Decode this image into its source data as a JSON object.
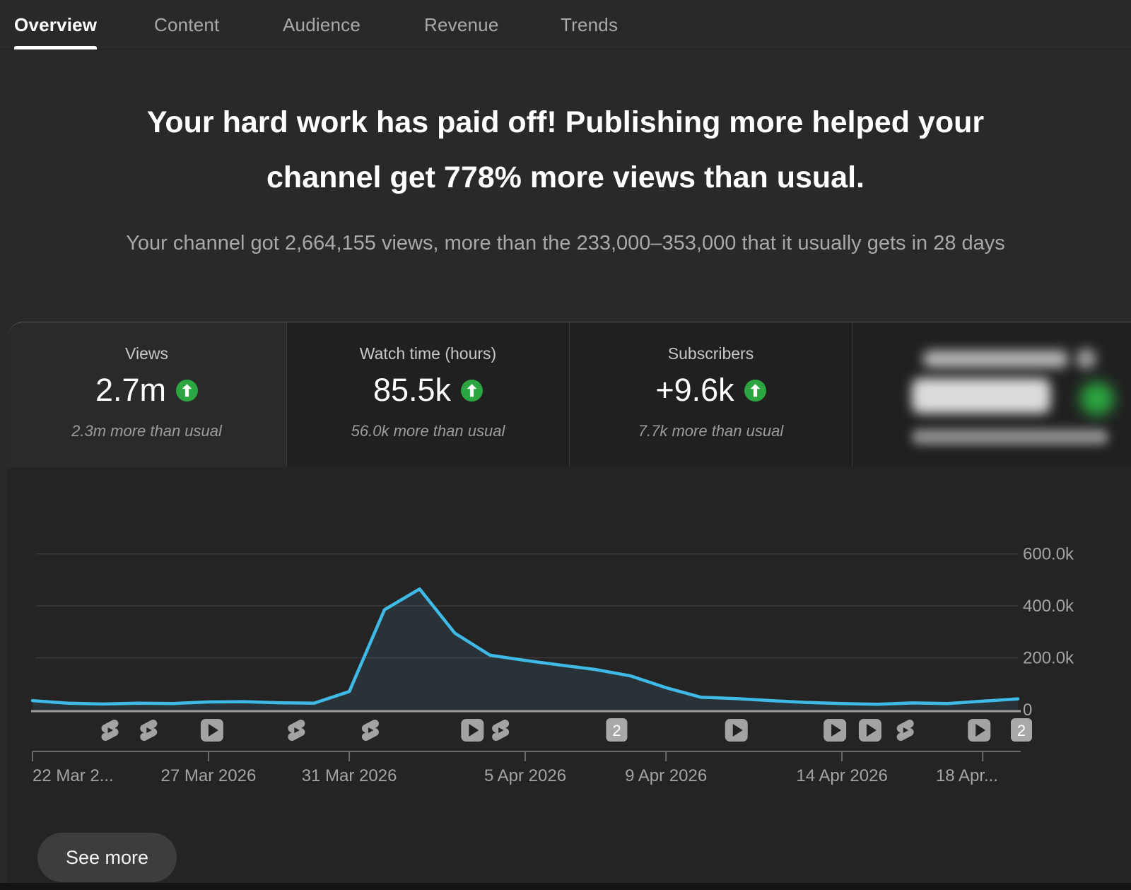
{
  "tabs": {
    "items": [
      {
        "label": "Overview",
        "active": true
      },
      {
        "label": "Content",
        "active": false
      },
      {
        "label": "Audience",
        "active": false
      },
      {
        "label": "Revenue",
        "active": false
      },
      {
        "label": "Trends",
        "active": false
      }
    ]
  },
  "headline": {
    "line1": "Your hard work has paid off! Publishing more helped your",
    "line2": "channel get 778% more views than usual."
  },
  "subheadline": "Your channel got 2,664,155 views, more than the 233,000–353,000 that it usually gets in 28 days",
  "metric_cards": [
    {
      "label": "Views",
      "value": "2.7m",
      "trend": "up",
      "note": "2.3m more than usual",
      "selected": true
    },
    {
      "label": "Watch time (hours)",
      "value": "85.5k",
      "trend": "up",
      "note": "56.0k more than usual",
      "selected": false
    },
    {
      "label": "Subscribers",
      "value": "+9.6k",
      "trend": "up",
      "note": "7.7k more than usual",
      "selected": false
    },
    {
      "redacted": true,
      "trend": "up",
      "selected": false
    }
  ],
  "chart_data": {
    "type": "area",
    "title": "",
    "x_start_label": "22 Mar 2026",
    "x_tick_labels": [
      "22 Mar 2...",
      "27 Mar 2026",
      "31 Mar 2026",
      "5 Apr 2026",
      "9 Apr 2026",
      "14 Apr 2026",
      "18 Apr..."
    ],
    "x_tick_day_index": [
      0,
      5,
      9,
      14,
      18,
      23,
      27
    ],
    "y_tick_labels": [
      "600.0k",
      "400.0k",
      "200.0k",
      "0"
    ],
    "y_tick_values": [
      600000,
      400000,
      200000,
      0
    ],
    "ylim": [
      0,
      720000
    ],
    "grid": true,
    "legend": "none",
    "values": [
      35000,
      25000,
      22000,
      25000,
      24000,
      30000,
      31000,
      27000,
      25000,
      70000,
      385000,
      465000,
      295000,
      210000,
      190000,
      172000,
      155000,
      130000,
      85000,
      48000,
      43000,
      35000,
      28000,
      24000,
      21000,
      26000,
      24000,
      33000,
      42000
    ],
    "markers": [
      {
        "day": 2.2,
        "type": "shorts"
      },
      {
        "day": 3.3,
        "type": "shorts"
      },
      {
        "day": 5.1,
        "type": "video"
      },
      {
        "day": 7.5,
        "type": "shorts"
      },
      {
        "day": 9.6,
        "type": "shorts"
      },
      {
        "day": 12.5,
        "type": "video"
      },
      {
        "day": 13.3,
        "type": "shorts"
      },
      {
        "day": 16.6,
        "type": "multi",
        "count": "2"
      },
      {
        "day": 20.0,
        "type": "video"
      },
      {
        "day": 22.8,
        "type": "video"
      },
      {
        "day": 23.8,
        "type": "video"
      },
      {
        "day": 24.8,
        "type": "shorts"
      },
      {
        "day": 26.9,
        "type": "video"
      },
      {
        "day": 28.1,
        "type": "multi",
        "count": "2"
      }
    ]
  },
  "see_more_label": "See more",
  "colors": {
    "accent_line": "#3fb9e6",
    "positive_green": "#2ba640",
    "grid": "#3a3a3a",
    "axis": "#6a6a6a",
    "baseline": "#9e9e9e",
    "icon_gray": "#a3a3a3",
    "tick_text": "#a3a3a3"
  }
}
